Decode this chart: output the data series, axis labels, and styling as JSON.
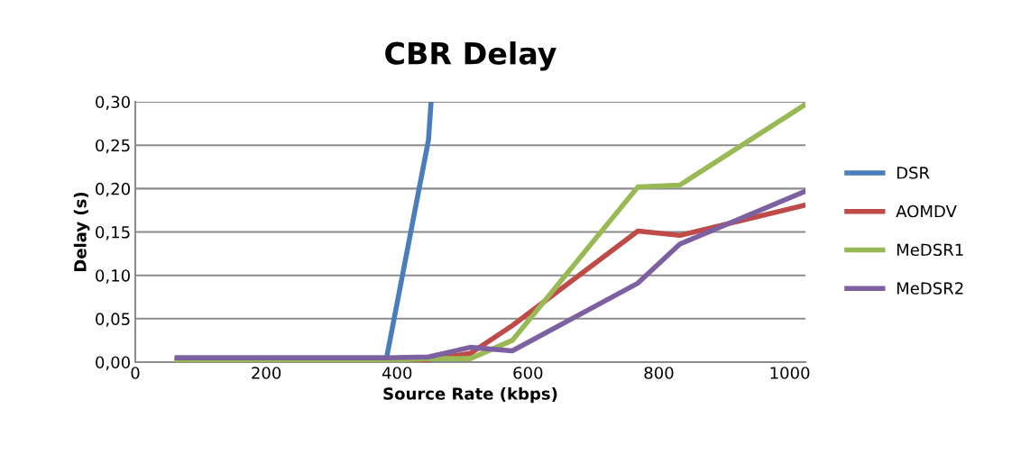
{
  "chart_data": {
    "type": "line",
    "title": "CBR Delay",
    "xlabel": "Source Rate (kbps)",
    "ylabel": "Delay (s)",
    "x": [
      64,
      128,
      192,
      256,
      320,
      384,
      448,
      512,
      576,
      768,
      832,
      1024
    ],
    "series": [
      {
        "name": "DSR",
        "color": "#4a7ebb",
        "x": [
          64,
          128,
          192,
          256,
          320,
          384,
          448,
          452
        ],
        "values": [
          0.005,
          0.005,
          0.005,
          0.005,
          0.005,
          0.005,
          0.256,
          0.3
        ]
      },
      {
        "name": "AOMDV",
        "color": "#be4b48",
        "values": [
          0.002,
          0.002,
          0.002,
          0.002,
          0.002,
          0.002,
          0.003,
          0.01,
          0.042,
          0.151,
          0.146,
          0.181
        ]
      },
      {
        "name": "MeDSR1",
        "color": "#98b954",
        "values": [
          0.002,
          0.002,
          0.002,
          0.002,
          0.002,
          0.002,
          0.004,
          0.004,
          0.025,
          0.202,
          0.204,
          0.297
        ]
      },
      {
        "name": "MeDSR2",
        "color": "#7d60a0",
        "values": [
          0.005,
          0.005,
          0.005,
          0.005,
          0.005,
          0.005,
          0.006,
          0.017,
          0.013,
          0.091,
          0.136,
          0.197
        ]
      }
    ],
    "xlim": [
      0,
      1024
    ],
    "xticks": [
      0,
      200,
      400,
      600,
      800,
      1000
    ],
    "ylim": [
      0,
      0.3
    ],
    "yticks": [
      {
        "value": 0,
        "label": "0,00"
      },
      {
        "value": 0.05,
        "label": "0,05"
      },
      {
        "value": 0.1,
        "label": "0,10"
      },
      {
        "value": 0.15,
        "label": "0,15"
      },
      {
        "value": 0.2,
        "label": "0,20"
      },
      {
        "value": 0.25,
        "label": "0,25"
      },
      {
        "value": 0.3,
        "label": "0,30"
      }
    ],
    "grid": "y",
    "legend": "right",
    "marker": "none",
    "line_style": "solid"
  }
}
